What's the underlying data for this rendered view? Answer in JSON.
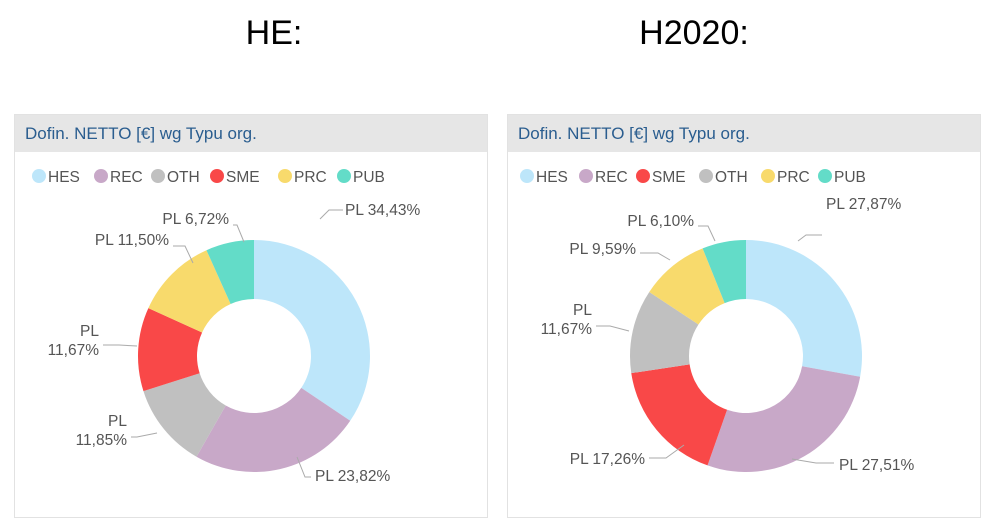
{
  "headings": {
    "left": "HE:",
    "right": "H2020:"
  },
  "colors": {
    "HES": "#bde6fa",
    "REC": "#c8a8c8",
    "OTH": "#c0c0c0",
    "SME": "#f94848",
    "PRC": "#f8da6c",
    "PUB": "#63dcc8"
  },
  "chart_data": [
    {
      "type": "pie",
      "title": "Dofin. NETTO [€] wg Typu org.",
      "legend_position": "top-left",
      "legend": [
        "HES",
        "REC",
        "OTH",
        "SME",
        "PRC",
        "PUB"
      ],
      "slices": [
        {
          "category": "HES",
          "value": 34.43,
          "label": "PL 34,43%"
        },
        {
          "category": "REC",
          "value": 23.82,
          "label": "PL 23,82%"
        },
        {
          "category": "OTH",
          "value": 11.85,
          "label_lines": [
            "PL",
            "11,85%"
          ]
        },
        {
          "category": "SME",
          "value": 11.67,
          "label_lines": [
            "PL",
            "11,67%"
          ]
        },
        {
          "category": "PRC",
          "value": 11.5,
          "label": "PL 11,50%"
        },
        {
          "category": "PUB",
          "value": 6.72,
          "label": "PL 6,72%"
        }
      ]
    },
    {
      "type": "pie",
      "title": "Dofin. NETTO [€] wg Typu org.",
      "legend_position": "top-left",
      "legend": [
        "HES",
        "REC",
        "SME",
        "OTH",
        "PRC",
        "PUB"
      ],
      "slices": [
        {
          "category": "HES",
          "value": 27.87,
          "label": "PL 27,87%"
        },
        {
          "category": "REC",
          "value": 27.51,
          "label": "PL 27,51%"
        },
        {
          "category": "SME",
          "value": 17.26,
          "label": "PL 17,26%"
        },
        {
          "category": "OTH",
          "value": 11.67,
          "label_lines": [
            "PL",
            "11,67%"
          ]
        },
        {
          "category": "PRC",
          "value": 9.59,
          "label": "PL 9,59%"
        },
        {
          "category": "PUB",
          "value": 6.1,
          "label": "PL 6,10%"
        }
      ]
    }
  ]
}
